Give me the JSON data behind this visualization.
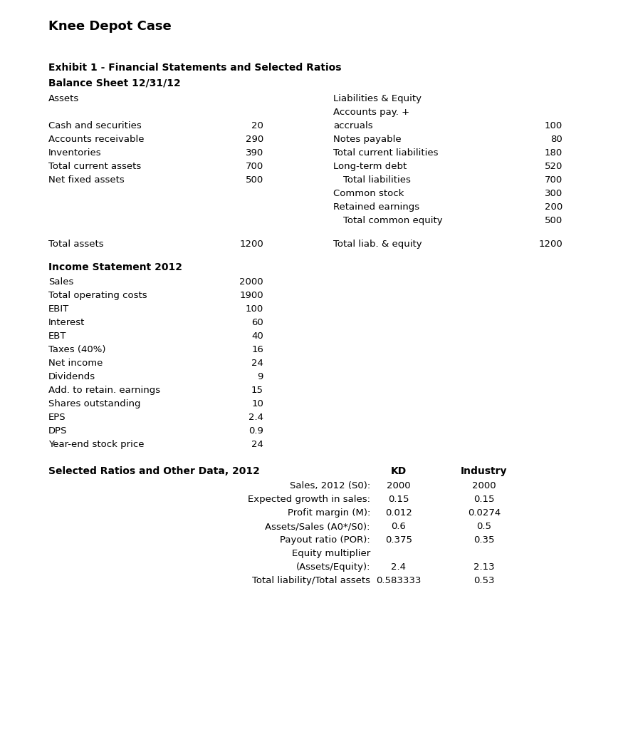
{
  "title": "Knee Depot Case",
  "exhibit_line1": "Exhibit 1 - Financial Statements and Selected Ratios",
  "exhibit_line2": "Balance Sheet 12/31/12",
  "bg_color": "#ffffff",
  "balance_sheet": {
    "assets_header": "Assets",
    "liabilities_header": "Liabilities & Equity",
    "assets": [
      {
        "label": "Cash and securities",
        "value": "20"
      },
      {
        "label": "Accounts receivable",
        "value": "290"
      },
      {
        "label": "Inventories",
        "value": "390"
      },
      {
        "label": "Total current assets",
        "value": "700"
      },
      {
        "label": "Net fixed assets",
        "value": "500"
      }
    ],
    "total_assets_label": "Total assets",
    "total_assets_value": "1200",
    "liab_line1": "Liabilities & Equity",
    "liab_line2": "Accounts pay. +",
    "liabilities": [
      {
        "label": "accruals",
        "value": "100",
        "indent": false
      },
      {
        "label": "Notes payable",
        "value": "80",
        "indent": false
      },
      {
        "label": "Total current liabilities",
        "value": "180",
        "indent": false
      },
      {
        "label": "Long-term debt",
        "value": "520",
        "indent": false
      },
      {
        "label": "Total liabilities",
        "value": "700",
        "indent": true
      },
      {
        "label": "Common stock",
        "value": "300",
        "indent": false
      },
      {
        "label": "Retained earnings",
        "value": "200",
        "indent": false
      },
      {
        "label": "Total common equity",
        "value": "500",
        "indent": true
      }
    ],
    "total_liab_label": "Total liab. & equity",
    "total_liab_value": "1200"
  },
  "income_statement": {
    "header": "Income Statement 2012",
    "items": [
      {
        "label": "Sales",
        "value": "2000"
      },
      {
        "label": "Total operating costs",
        "value": "1900"
      },
      {
        "label": "EBIT",
        "value": "100"
      },
      {
        "label": "Interest",
        "value": "60"
      },
      {
        "label": "EBT",
        "value": "40"
      },
      {
        "label": "Taxes (40%)",
        "value": "16"
      },
      {
        "label": "Net income",
        "value": "24"
      },
      {
        "label": "Dividends",
        "value": "9"
      },
      {
        "label": "Add. to retain. earnings",
        "value": "15"
      },
      {
        "label": "Shares outstanding",
        "value": "10"
      },
      {
        "label": "EPS",
        "value": "2.4"
      },
      {
        "label": "DPS",
        "value": "0.9"
      },
      {
        "label": "Year-end stock price",
        "value": "24"
      }
    ]
  },
  "selected_ratios": {
    "header": "Selected Ratios and Other Data, 2012",
    "col_kd": "KD",
    "col_industry": "Industry",
    "items": [
      {
        "label": "Sales, 2012 (S0):",
        "kd": "2000",
        "industry": "2000",
        "multiline": false
      },
      {
        "label": "Expected growth in sales:",
        "kd": "0.15",
        "industry": "0.15",
        "multiline": false
      },
      {
        "label": "Profit margin (M):",
        "kd": "0.012",
        "industry": "0.0274",
        "multiline": false
      },
      {
        "label": "Assets/Sales (A0*/S0):",
        "kd": "0.6",
        "industry": "0.5",
        "multiline": false
      },
      {
        "label": "Payout ratio (POR):",
        "kd": "0.375",
        "industry": "0.35",
        "multiline": false
      },
      {
        "label_line1": "Equity multiplier",
        "label_line2": "(Assets/Equity):",
        "kd": "2.4",
        "industry": "2.13",
        "multiline": true
      },
      {
        "label": "Total liability/Total assets",
        "kd": "0.583333",
        "industry": "0.53",
        "multiline": false
      }
    ]
  }
}
